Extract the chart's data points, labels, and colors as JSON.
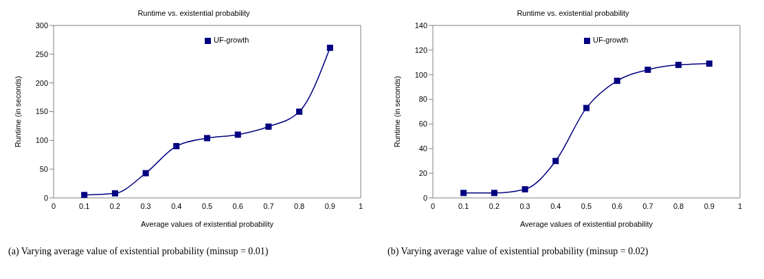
{
  "chart_data": [
    {
      "type": "line",
      "title": "Runtime vs. existential probability",
      "xlabel": "Average values of existential probability",
      "ylabel": "Runtime (in seconds)",
      "x": [
        0.1,
        0.2,
        0.3,
        0.4,
        0.5,
        0.6,
        0.7,
        0.8,
        0.9
      ],
      "series": [
        {
          "name": "UF-growth",
          "color": "#000080",
          "values": [
            5,
            8,
            43,
            90,
            104,
            110,
            124,
            150,
            261
          ]
        }
      ],
      "xlim": [
        0,
        1
      ],
      "xticks": [
        0,
        0.1,
        0.2,
        0.3,
        0.4,
        0.5,
        0.6,
        0.7,
        0.8,
        0.9,
        1
      ],
      "ylim": [
        0,
        300
      ],
      "yticks": [
        0,
        50,
        100,
        150,
        200,
        250,
        300
      ],
      "grid": false,
      "legend": "top right",
      "marker": "square",
      "line_style": "solid",
      "annotations": [
        "(a) Varying average value of existential probability (minsup = 0.01)"
      ]
    },
    {
      "type": "line",
      "title": "Runtime vs. existential probability",
      "xlabel": "Average values of existential probability",
      "ylabel": "Runtime (in seconds)",
      "x": [
        0.1,
        0.2,
        0.3,
        0.4,
        0.5,
        0.6,
        0.7,
        0.8,
        0.9
      ],
      "series": [
        {
          "name": "UF-growth",
          "color": "#000080",
          "values": [
            4,
            4,
            7,
            30,
            73,
            95,
            104,
            108,
            109
          ]
        }
      ],
      "xlim": [
        0,
        1
      ],
      "xticks": [
        0,
        0.1,
        0.2,
        0.3,
        0.4,
        0.5,
        0.6,
        0.7,
        0.8,
        0.9,
        1
      ],
      "ylim": [
        0,
        140
      ],
      "yticks": [
        0,
        20,
        40,
        60,
        80,
        100,
        120,
        140
      ],
      "grid": false,
      "legend": "top right",
      "marker": "square",
      "line_style": "solid",
      "annotations": [
        "(b) Varying average value of existential probability (minsup = 0.02)"
      ]
    }
  ]
}
